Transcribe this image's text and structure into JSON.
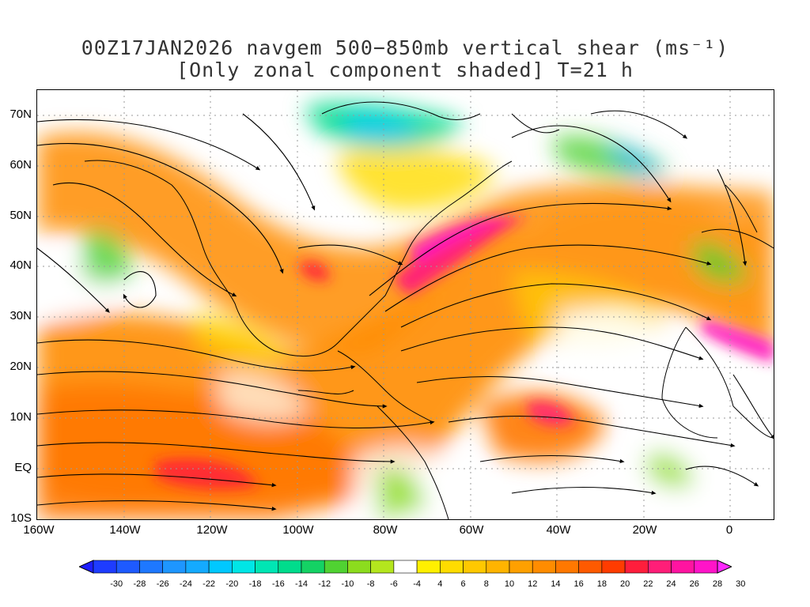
{
  "title": {
    "line1": "00Z17JAN2026 navgem 500−850mb vertical shear (ms⁻¹)",
    "line2": "[Only zonal component shaded] T=21 h"
  },
  "map": {
    "lon_range": [
      -160,
      10
    ],
    "lat_range": [
      -10,
      75
    ],
    "lat_labels": [
      {
        "value": 70,
        "text": "70N"
      },
      {
        "value": 60,
        "text": "60N"
      },
      {
        "value": 50,
        "text": "50N"
      },
      {
        "value": 40,
        "text": "40N"
      },
      {
        "value": 30,
        "text": "30N"
      },
      {
        "value": 20,
        "text": "20N"
      },
      {
        "value": 10,
        "text": "10N"
      },
      {
        "value": 0,
        "text": "EQ"
      },
      {
        "value": -10,
        "text": "10S"
      }
    ],
    "lon_labels": [
      {
        "value": -160,
        "text": "160W"
      },
      {
        "value": -140,
        "text": "140W"
      },
      {
        "value": -120,
        "text": "120W"
      },
      {
        "value": -100,
        "text": "100W"
      },
      {
        "value": -80,
        "text": "80W"
      },
      {
        "value": -60,
        "text": "60W"
      },
      {
        "value": -40,
        "text": "40W"
      },
      {
        "value": -20,
        "text": "20W"
      },
      {
        "value": 0,
        "text": "0"
      }
    ]
  },
  "colorbar": {
    "labels": [
      "-30",
      "-28",
      "-26",
      "-24",
      "-22",
      "-20",
      "-18",
      "-16",
      "-14",
      "-12",
      "-10",
      "-8",
      "-6",
      "-4",
      "4",
      "6",
      "8",
      "10",
      "12",
      "14",
      "16",
      "18",
      "20",
      "22",
      "24",
      "26",
      "28",
      "30"
    ],
    "colors": [
      "#1e3cff",
      "#1e5aff",
      "#1e78ff",
      "#1e96ff",
      "#14aaff",
      "#00c8ff",
      "#00e6e6",
      "#00e6b4",
      "#00dc8c",
      "#14d264",
      "#50d232",
      "#8cdc1e",
      "#b4e61e",
      "#ffffff",
      "#fff000",
      "#ffdc00",
      "#ffc800",
      "#ffb400",
      "#ffa000",
      "#ff8c00",
      "#ff7800",
      "#ff5a00",
      "#ff3c00",
      "#ff1e3c",
      "#ff1e78",
      "#ff14a0",
      "#ff14c8"
    ],
    "under_color": "#1e1eff",
    "over_color": "#ff28ff"
  }
}
